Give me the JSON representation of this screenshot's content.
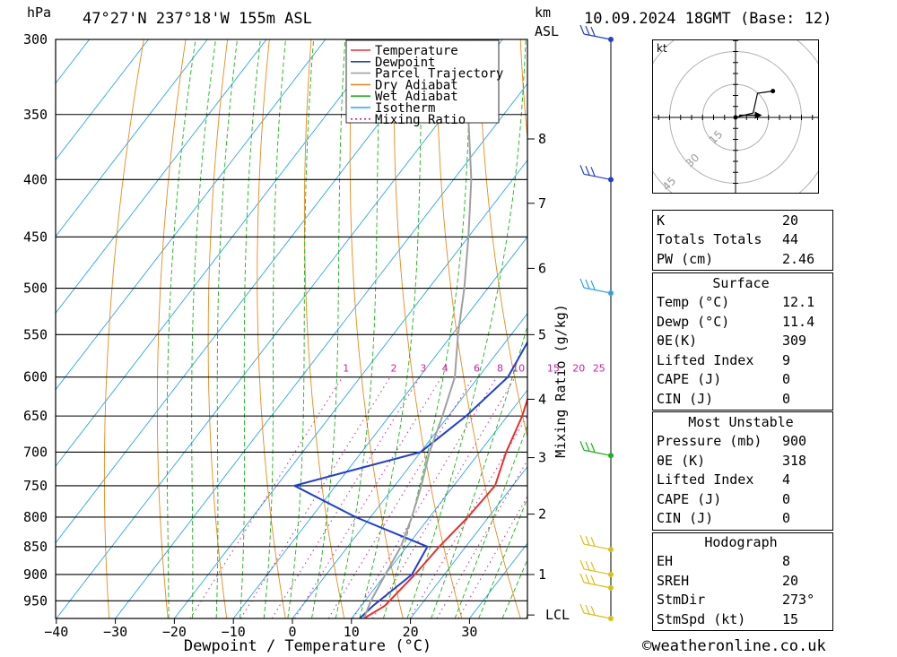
{
  "header": {
    "hpa_unit": "hPa",
    "location": "47°27'N  237°18'W  155m  ASL",
    "km_unit": "km",
    "asl_unit": "ASL",
    "datetime": "10.09.2024  18GMT  (Base: 12)"
  },
  "chart_data": {
    "type": "line",
    "title": "",
    "xlabel": "Dewpoint / Temperature (°C)",
    "ylabel": "hPa",
    "secondary_ylabel": "Mixing Ratio (g/kg)",
    "x_ticks": [
      "−40",
      "−30",
      "−20",
      "−10",
      "0",
      "10",
      "20",
      "30"
    ],
    "x_tick_values": [
      -40,
      -30,
      -20,
      -10,
      0,
      10,
      20,
      30
    ],
    "pressure_levels": [
      300,
      350,
      400,
      450,
      500,
      550,
      600,
      650,
      700,
      750,
      800,
      850,
      900,
      950
    ],
    "ylim": [
      985,
      300
    ],
    "xlim": [
      -40,
      40
    ],
    "skew_scale": "log-p",
    "height_ticks_km": [
      {
        "label": "8",
        "p": 368
      },
      {
        "label": "7",
        "p": 420
      },
      {
        "label": "6",
        "p": 480
      },
      {
        "label": "5",
        "p": 550
      },
      {
        "label": "4",
        "p": 628
      },
      {
        "label": "3",
        "p": 708
      },
      {
        "label": "2",
        "p": 795
      },
      {
        "label": "1",
        "p": 900
      },
      {
        "label": "LCL",
        "p": 978
      }
    ],
    "mixing_ratio_labels": [
      "1",
      "2",
      "3",
      "4",
      "6",
      "8",
      "10",
      "15",
      "20",
      "25"
    ],
    "mixing_ratio_values": [
      1,
      2,
      3,
      4,
      6,
      8,
      10,
      15,
      20,
      25
    ],
    "mixing_ratio_label_p": 593,
    "legend": {
      "position": "top",
      "entries": [
        {
          "label": "Temperature",
          "color": "#e8302a",
          "style": "solid"
        },
        {
          "label": "Dewpoint",
          "color": "#1f3fd6",
          "style": "solid"
        },
        {
          "label": "Parcel Trajectory",
          "color": "#a0a0a0",
          "style": "solid"
        },
        {
          "label": "Dry Adiabat",
          "color": "#e98a16",
          "style": "solid"
        },
        {
          "label": "Wet Adiabat",
          "color": "#16b516",
          "style": "solid"
        },
        {
          "label": "Isotherm",
          "color": "#2aa6e8",
          "style": "solid"
        },
        {
          "label": "Mixing Ratio",
          "color": "#d01e9c",
          "style": "dotted"
        }
      ]
    },
    "series": [
      {
        "name": "Temperature",
        "color": "#e8302a",
        "points": [
          [
            985,
            12.1
          ],
          [
            960,
            14
          ],
          [
            900,
            15
          ],
          [
            850,
            15.5
          ],
          [
            800,
            16.5
          ],
          [
            750,
            17
          ],
          [
            700,
            14.5
          ],
          [
            650,
            12.5
          ],
          [
            600,
            9.5
          ],
          [
            550,
            7.5
          ],
          [
            500,
            3
          ],
          [
            450,
            -1.5
          ],
          [
            400,
            -6.5
          ],
          [
            350,
            -12.5
          ],
          [
            300,
            -18.5
          ]
        ]
      },
      {
        "name": "Dewpoint",
        "color": "#1f3fd6",
        "points": [
          [
            985,
            11.4
          ],
          [
            960,
            12
          ],
          [
            900,
            14.5
          ],
          [
            850,
            13.5
          ],
          [
            800,
            -2.5
          ],
          [
            750,
            -17
          ],
          [
            700,
            0
          ],
          [
            650,
            3
          ],
          [
            600,
            5
          ],
          [
            550,
            3.5
          ],
          [
            500,
            -2
          ],
          [
            450,
            -4
          ],
          [
            400,
            -11
          ],
          [
            350,
            -20.5
          ],
          [
            300,
            -29.5
          ]
        ]
      },
      {
        "name": "Parcel Trajectory",
        "color": "#a0a0a0",
        "points": [
          [
            985,
            12.1
          ],
          [
            950,
            11
          ],
          [
            900,
            10
          ],
          [
            850,
            9
          ],
          [
            800,
            7
          ],
          [
            750,
            4.5
          ],
          [
            700,
            1.5
          ],
          [
            650,
            -1
          ],
          [
            600,
            -4
          ],
          [
            550,
            -9
          ],
          [
            500,
            -14
          ],
          [
            450,
            -20
          ],
          [
            400,
            -27
          ],
          [
            350,
            -36
          ],
          [
            300,
            -45
          ]
        ]
      }
    ],
    "wind_barbs": [
      {
        "p": 300,
        "color": "#1f3fd6"
      },
      {
        "p": 400,
        "color": "#1f3fd6"
      },
      {
        "p": 505,
        "color": "#2aa6e8"
      },
      {
        "p": 705,
        "color": "#16b516"
      },
      {
        "p": 855,
        "color": "#d4c21b"
      },
      {
        "p": 900,
        "color": "#d4c21b"
      },
      {
        "p": 925,
        "color": "#d4c21b"
      },
      {
        "p": 985,
        "color": "#d4c21b"
      }
    ]
  },
  "hodograph": {
    "unit_label": "kt",
    "ring_labels": [
      "15",
      "30",
      "45"
    ],
    "trace_points": [
      [
        0,
        0
      ],
      [
        8,
        2
      ],
      [
        10,
        11
      ],
      [
        17,
        12
      ]
    ],
    "storm_motion": [
      6,
      1
    ]
  },
  "indices": {
    "k_label": "K",
    "k_value": "20",
    "tt_label": "Totals Totals",
    "tt_value": "44",
    "pw_label": "PW (cm)",
    "pw_value": "2.46"
  },
  "surface": {
    "title": "Surface",
    "rows": [
      {
        "label": "Temp (°C)",
        "value": "12.1"
      },
      {
        "label": "Dewp (°C)",
        "value": "11.4"
      },
      {
        "label": "θE(K)",
        "value": "309"
      },
      {
        "label": "Lifted Index",
        "value": "9"
      },
      {
        "label": "CAPE (J)",
        "value": "0"
      },
      {
        "label": "CIN (J)",
        "value": "0"
      }
    ]
  },
  "most_unstable": {
    "title": "Most Unstable",
    "rows": [
      {
        "label": "Pressure (mb)",
        "value": "900"
      },
      {
        "label": "θE (K)",
        "value": "318"
      },
      {
        "label": "Lifted Index",
        "value": "4"
      },
      {
        "label": "CAPE (J)",
        "value": "0"
      },
      {
        "label": "CIN (J)",
        "value": "0"
      }
    ]
  },
  "hodograph_stats": {
    "title": "Hodograph",
    "rows": [
      {
        "label": "EH",
        "value": "8"
      },
      {
        "label": "SREH",
        "value": "20"
      },
      {
        "label": "StmDir",
        "value": "273°"
      },
      {
        "label": "StmSpd (kt)",
        "value": "15"
      }
    ]
  },
  "footer": {
    "credit": "©weatheronline.co.uk"
  }
}
